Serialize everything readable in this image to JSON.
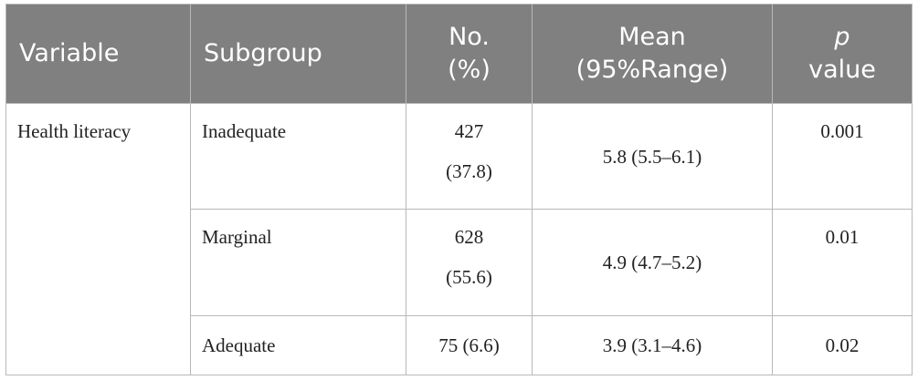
{
  "table": {
    "headers": {
      "variable": "Variable",
      "subgroup": "Subgroup",
      "no_line1": "No.",
      "no_line2": "(%)",
      "mean_line1": "Mean",
      "mean_line2": "(95%Range)",
      "p_line1": "p",
      "p_line2": "value"
    },
    "variable": "Health literacy",
    "rows": [
      {
        "subgroup": "Inadequate",
        "no_count": "427",
        "no_pct": "(37.8)",
        "mean": "5.8 (5.5–6.1)",
        "p": "0.001"
      },
      {
        "subgroup": "Marginal",
        "no_count": "628",
        "no_pct": "(55.6)",
        "mean": "4.9 (4.7–5.2)",
        "p": "0.01"
      },
      {
        "subgroup": "Adequate",
        "no": "75 (6.6)",
        "mean": "3.9 (3.1–4.6)",
        "p": "0.02"
      }
    ]
  }
}
